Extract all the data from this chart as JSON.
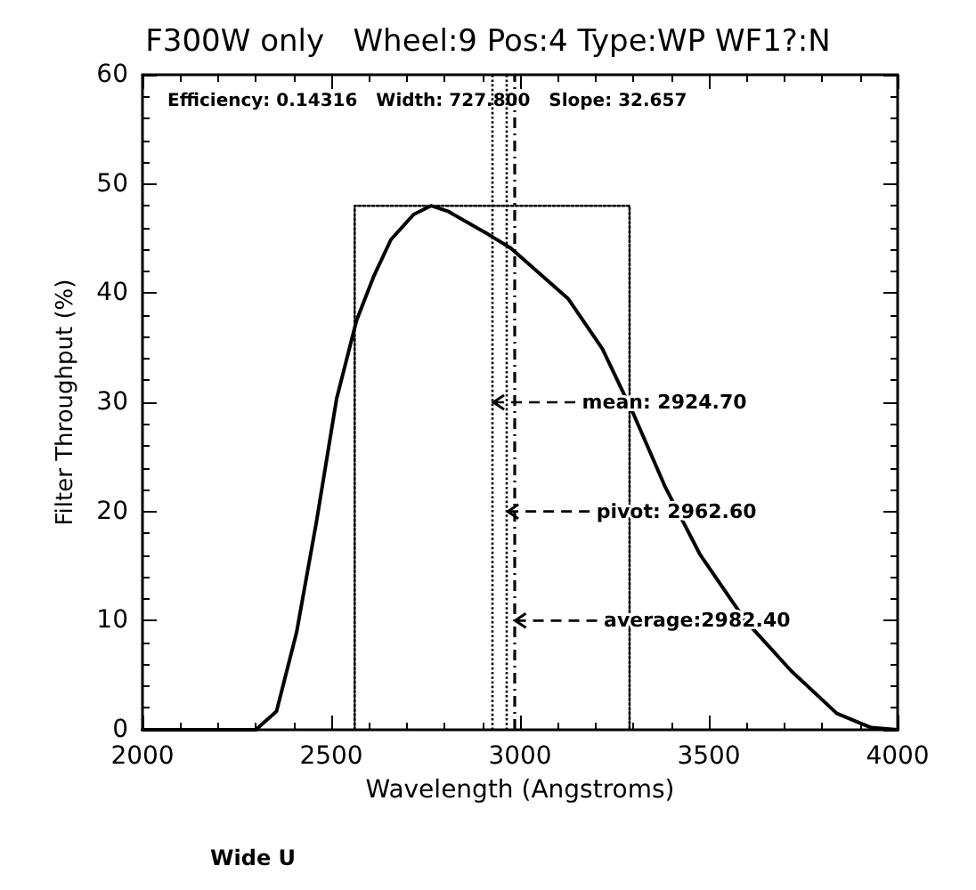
{
  "chart_data": {
    "type": "line",
    "title": "F300W only   Wheel:9 Pos:4 Type:WP WF1?:N",
    "xlabel": "Wavelength (Angstroms)",
    "ylabel": "Filter Throughput (%)",
    "xlim": [
      2000,
      4000
    ],
    "xticks": [
      2000,
      2500,
      3000,
      3500,
      4000
    ],
    "ylim": [
      0,
      60
    ],
    "yticks": [
      0,
      10,
      20,
      30,
      40,
      50,
      60
    ],
    "grid": false,
    "marker": "none",
    "series": [
      {
        "color": "#000000",
        "line_style": "solid",
        "x": [
          2000,
          2300,
          2355,
          2408,
          2461,
          2514,
          2567,
          2612,
          2658,
          2718,
          2764,
          2809,
          2915,
          2976,
          3127,
          3218,
          3302,
          3385,
          3476,
          3597,
          3718,
          3839,
          3930,
          4000
        ],
        "values": [
          0,
          0,
          1.7,
          8.9,
          19.1,
          30.3,
          37.5,
          41.5,
          44.9,
          47.2,
          48,
          47.5,
          45.4,
          44.1,
          39.5,
          34.9,
          28.8,
          22.2,
          16.1,
          10,
          5.4,
          1.5,
          0.2,
          0
        ]
      },
      {
        "color": "#000000",
        "line_style": "dotted",
        "x": [
          2562,
          2562,
          3290,
          3290
        ],
        "values": [
          0,
          48,
          48,
          0
        ]
      }
    ],
    "ref_lines": [
      {
        "axis": "x",
        "value": 2924.7,
        "line_style": "dotted",
        "label": "mean: 2924.70"
      },
      {
        "axis": "x",
        "value": 2962.6,
        "line_style": "dotted",
        "label": "pivot: 2962.60"
      },
      {
        "axis": "x",
        "value": 2982.4,
        "line_style": "dashed",
        "label": "average:2982.40"
      }
    ],
    "annotations": [
      "Efficiency: 0.14316   Width: 727.800   Slope: 32.657",
      "Wide U"
    ]
  }
}
